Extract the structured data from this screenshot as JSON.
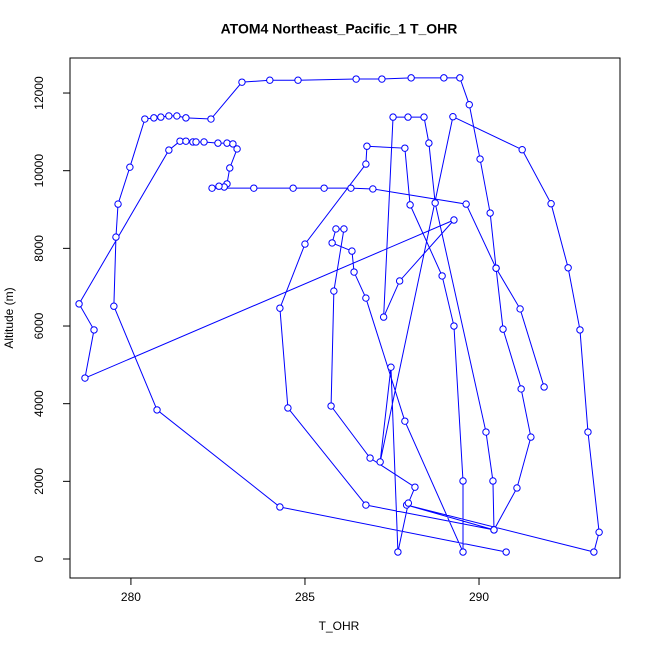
{
  "chart_data": {
    "type": "line",
    "marker": "circle",
    "title": "ATOM4 Northeast_Pacific_1 T_OHR",
    "x_label": "T_OHR",
    "y_label": "Altitude (m)",
    "color": "#0000ff",
    "x": [
      290.78,
      284.28,
      280.75,
      279.51,
      279.57,
      279.63,
      279.97,
      280.4,
      280.66,
      280.86,
      281.09,
      281.32,
      281.58,
      282.3,
      283.19,
      283.99,
      284.8,
      286.47,
      287.21,
      288.05,
      288.99,
      289.45,
      289.72,
      290.03,
      290.32,
      290.49,
      290.69,
      291.21,
      291.49,
      291.09,
      290.43,
      287.92,
      293.3,
      293.45,
      293.13,
      292.9,
      292.56,
      292.07,
      291.24,
      289.25,
      287.16,
      287.47,
      287.67,
      287.97,
      288.16,
      286.87,
      285.75,
      285.83,
      286.12,
      285.89,
      285.78,
      286.35,
      286.41,
      286.75,
      287.87,
      289.54,
      289.54,
      289.28,
      288.94,
      288.02,
      287.87,
      286.78,
      286.75,
      285.0,
      284.28,
      284.51,
      286.75,
      290.43,
      290.4,
      290.2,
      288.74,
      288.56,
      288.42,
      287.96,
      287.53,
      287.26,
      287.72,
      289.28,
      278.68,
      278.94,
      278.51,
      281.09,
      281.41,
      281.58,
      281.78,
      281.87,
      282.1,
      282.5,
      282.76,
      282.93,
      283.05,
      282.84,
      282.76,
      282.68,
      282.53,
      282.33,
      283.53,
      284.66,
      285.55,
      286.32,
      286.95,
      289.63,
      290.49,
      291.18,
      291.87
    ],
    "values": [
      180,
      1340,
      3840,
      6510,
      8290,
      9140,
      10090,
      11330,
      11360,
      11380,
      11410,
      11410,
      11360,
      11330,
      12280,
      12330,
      12330,
      12360,
      12360,
      12390,
      12390,
      12390,
      11700,
      10300,
      8910,
      7490,
      5920,
      4380,
      3140,
      1830,
      750,
      1390,
      180,
      690,
      3270,
      5900,
      7500,
      9150,
      10540,
      11390,
      2500,
      4940,
      180,
      1440,
      1850,
      2600,
      3940,
      6900,
      8500,
      8500,
      8140,
      7930,
      7390,
      6720,
      3550,
      180,
      2010,
      6000,
      7290,
      9120,
      10580,
      10630,
      10170,
      8110,
      6460,
      3890,
      1390,
      750,
      2010,
      3270,
      9170,
      10710,
      11380,
      11380,
      11380,
      6230,
      7160,
      8730,
      4660,
      5900,
      6570,
      10530,
      10760,
      10760,
      10740,
      10740,
      10740,
      10710,
      10710,
      10690,
      10560,
      10070,
      9660,
      9580,
      9600,
      9550,
      9550,
      9550,
      9550,
      9550,
      9530,
      9140,
      7490,
      6440,
      4430
    ],
    "xlim": [
      278.25,
      294.05
    ],
    "ylim": [
      -489,
      12902
    ],
    "xticks": [
      280,
      285,
      290
    ],
    "yticks": [
      0,
      2000,
      4000,
      6000,
      8000,
      10000,
      12000
    ]
  }
}
